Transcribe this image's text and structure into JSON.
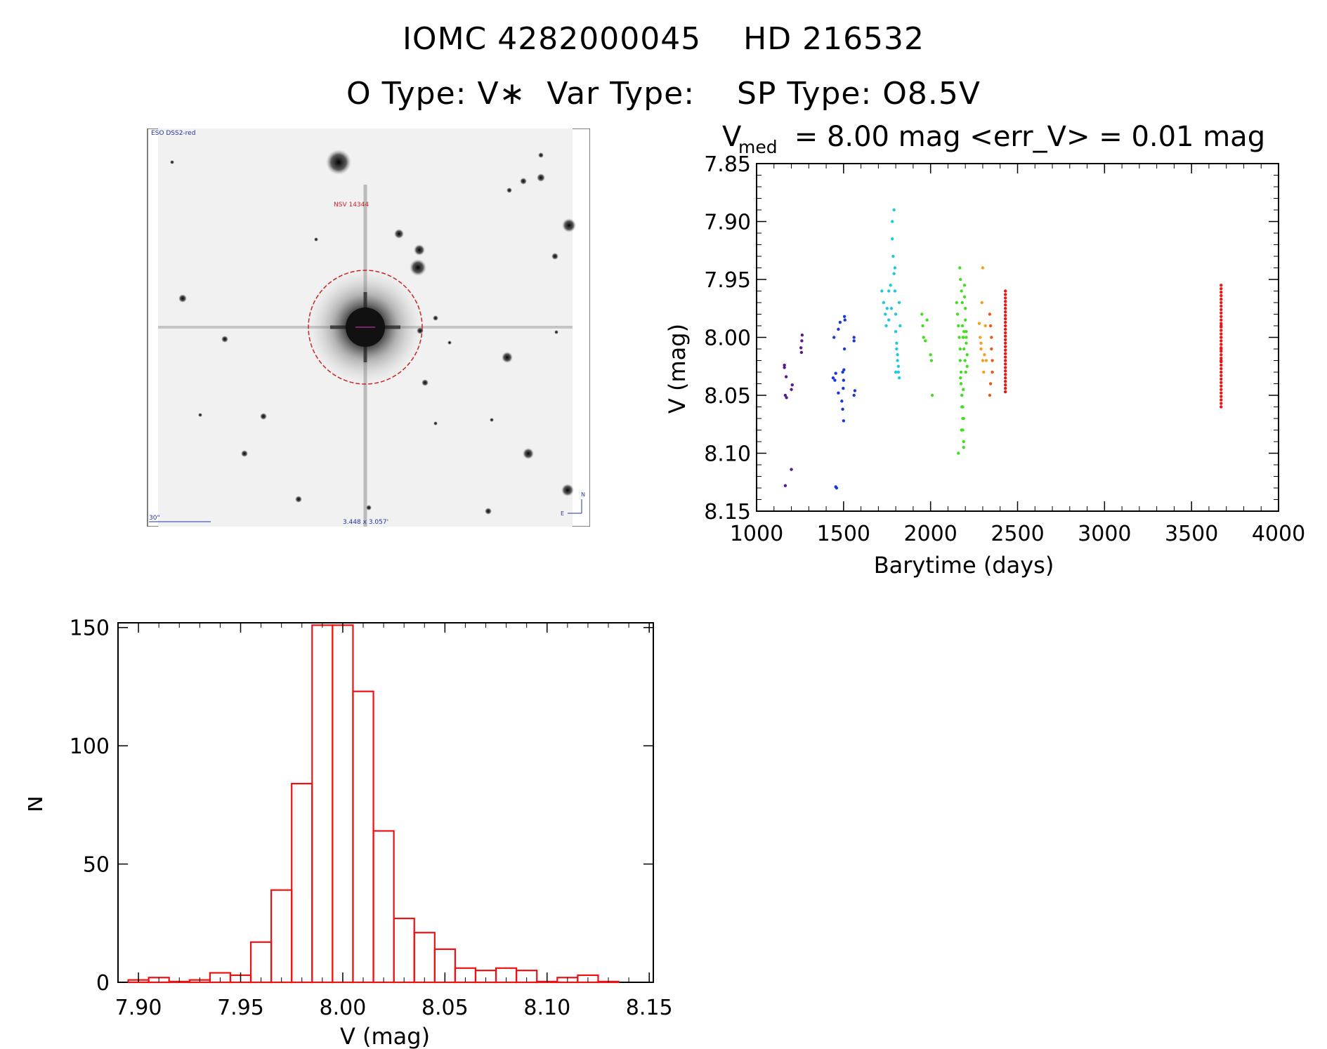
{
  "header": {
    "title_line1": "IOMC 4282000045    HD 216532",
    "title_line2": "O Type: V∗  Var Type:    SP Type: O8.5V"
  },
  "sky_image": {
    "label_top": "ESO DSS2-red",
    "label_star": "NSV 14344",
    "label_scale": "30\"",
    "label_size": "3.448 x 3.057'",
    "label_north": "N",
    "label_east": "E"
  },
  "colors": {
    "histogram": "#ee1111",
    "circle": "#cc2222",
    "series": [
      "#5a1a8c",
      "#1a3ad8",
      "#20c8e0",
      "#44dd22",
      "#f2a020",
      "#e85a18",
      "#e81818"
    ]
  },
  "chart_data": [
    {
      "type": "scatter",
      "title_main": "V",
      "title_sub": "med",
      "title_rest": " = 8.00 mag <err_V> = 0.01 mag",
      "xlabel": "Barytime (days)",
      "ylabel": "V (mag)",
      "xlim": [
        1000,
        4000
      ],
      "ylim": [
        8.15,
        7.85
      ],
      "y_inverted": true,
      "xticks": [
        "1000",
        "1500",
        "2000",
        "2500",
        "3000",
        "3500",
        "4000"
      ],
      "yticks": [
        "7.85",
        "7.90",
        "7.95",
        "8.00",
        "8.05",
        "8.10",
        "8.15"
      ],
      "grid": false,
      "series": [
        {
          "color": "#5a1a8c",
          "x": [
            1160,
            1160,
            1165,
            1165,
            1200,
            1200,
            1205,
            1255,
            1258,
            1260,
            1262,
            1170,
            1172
          ],
          "y": [
            8.024,
            8.026,
            8.05,
            8.128,
            8.114,
            8.045,
            8.041,
            8.009,
            8.013,
            8.003,
            7.998,
            8.034,
            8.052
          ]
        },
        {
          "color": "#1a3ad8",
          "x": [
            1440,
            1445,
            1450,
            1455,
            1460,
            1470,
            1480,
            1490,
            1495,
            1500,
            1500,
            1502,
            1505,
            1505,
            1508,
            1495,
            1498,
            1560,
            1565,
            1560,
            1560,
            1470,
            1455
          ],
          "y": [
            8.035,
            8.0,
            8.037,
            8.129,
            8.13,
            7.993,
            7.987,
            8.055,
            8.062,
            8.072,
            8.037,
            8.028,
            8.01,
            7.982,
            7.985,
            8.03,
            8.044,
            8.05,
            8.046,
            8.003,
            8.0,
            8.048,
            8.031
          ]
        },
        {
          "color": "#20c8e0",
          "x": [
            1720,
            1730,
            1740,
            1745,
            1750,
            1760,
            1770,
            1775,
            1780,
            1780,
            1785,
            1790,
            1795,
            1800,
            1800,
            1805,
            1805,
            1810,
            1810,
            1815,
            1815,
            1820,
            1820,
            1825,
            1790,
            1795,
            1800,
            1760
          ],
          "y": [
            7.96,
            7.97,
            7.98,
            7.99,
            7.975,
            7.96,
            7.955,
            7.975,
            7.9,
            7.915,
            7.93,
            7.945,
            7.96,
            7.98,
            7.995,
            8.005,
            8.01,
            8.015,
            8.02,
            8.025,
            8.03,
            8.035,
            7.97,
            7.99,
            7.89,
            7.94,
            8.03,
            7.985
          ]
        },
        {
          "color": "#44dd22",
          "x": [
            1950,
            1955,
            1960,
            1970,
            1980,
            2000,
            2005,
            2010,
            2150,
            2155,
            2160,
            2165,
            2170,
            2170,
            2175,
            2175,
            2180,
            2180,
            2185,
            2185,
            2190,
            2190,
            2195,
            2195,
            2200,
            2200,
            2205,
            2205,
            2210,
            2210,
            2168,
            2172,
            2178,
            2182,
            2188,
            2192,
            2198,
            2202,
            2175,
            2180,
            2185,
            2190,
            2172,
            2188,
            2160,
            2205,
            2178,
            2192,
            2183,
            2187
          ],
          "y": [
            7.98,
            7.99,
            8.0,
            8.003,
            7.985,
            8.015,
            8.02,
            8.05,
            7.97,
            7.98,
            7.99,
            8.0,
            8.01,
            8.02,
            8.03,
            8.04,
            8.05,
            8.06,
            8.07,
            8.08,
            8.09,
            8.095,
            7.955,
            7.965,
            7.975,
            7.985,
            7.995,
            8.005,
            8.015,
            8.025,
            7.94,
            7.95,
            7.96,
            7.97,
            8.0,
            8.01,
            8.02,
            8.03,
            8.04,
            8.05,
            8.06,
            8.07,
            8.035,
            8.045,
            8.1,
            8.0,
            8.08,
            7.995,
            7.99,
            8.0
          ]
        },
        {
          "color": "#f2a020",
          "x": [
            2280,
            2285,
            2290,
            2295,
            2300,
            2305,
            2310,
            2315,
            2320,
            2300,
            2290
          ],
          "y": [
            7.988,
            8.0,
            8.01,
            7.97,
            8.02,
            8.03,
            8.015,
            7.99,
            8.02,
            7.94,
            8.005
          ]
        },
        {
          "color": "#e85a18",
          "x": [
            2340,
            2345,
            2350,
            2350,
            2355,
            2355,
            2345,
            2340
          ],
          "y": [
            7.98,
            7.99,
            8.0,
            8.01,
            8.02,
            8.03,
            8.04,
            8.05
          ]
        },
        {
          "color": "#e81818",
          "x": [
            2430,
            2430,
            2430,
            2430,
            2430,
            2430,
            2430,
            2430,
            2430,
            2430,
            2430,
            2430,
            2430,
            2430,
            2430,
            2430,
            2430,
            2430,
            2430,
            2430,
            2430,
            2430,
            2430,
            2430,
            2430,
            2430,
            2430,
            2430,
            2430,
            2430
          ],
          "y": [
            7.975,
            7.978,
            7.981,
            7.984,
            7.987,
            7.99,
            7.993,
            7.996,
            7.999,
            8.002,
            8.005,
            8.008,
            8.011,
            8.014,
            8.017,
            8.02,
            8.023,
            8.026,
            8.029,
            8.032,
            8.035,
            8.038,
            8.041,
            8.044,
            8.047,
            7.972,
            7.969,
            7.966,
            7.963,
            7.96
          ]
        },
        {
          "color": "#e81818",
          "x": [
            3670,
            3670,
            3670,
            3670,
            3670,
            3670,
            3670,
            3670,
            3670,
            3670,
            3670,
            3670,
            3670,
            3670,
            3670,
            3670,
            3670,
            3670,
            3670,
            3670,
            3670,
            3670,
            3670,
            3670,
            3670,
            3670,
            3670,
            3670,
            3670,
            3670,
            3670,
            3670,
            3670,
            3670,
            3670,
            3670,
            3670,
            3670,
            3670,
            3670
          ],
          "y": [
            7.955,
            7.958,
            7.961,
            7.964,
            7.967,
            7.97,
            7.973,
            7.976,
            7.979,
            7.982,
            7.985,
            7.988,
            7.991,
            7.994,
            7.997,
            8.0,
            8.003,
            8.006,
            8.009,
            8.012,
            8.015,
            8.018,
            8.021,
            8.024,
            8.027,
            8.03,
            8.033,
            8.036,
            8.039,
            8.042,
            8.045,
            8.048,
            8.051,
            8.054,
            8.057,
            8.06,
            7.99,
            8.0,
            8.01,
            8.02
          ]
        }
      ]
    },
    {
      "type": "bar",
      "subtype": "histogram",
      "xlabel": "V (mag)",
      "ylabel": "N",
      "xlim": [
        7.89,
        8.152
      ],
      "ylim": [
        0,
        152
      ],
      "xticks": [
        "7.90",
        "7.95",
        "8.00",
        "8.05",
        "8.10",
        "8.15"
      ],
      "yticks": [
        "0",
        "50",
        "100",
        "150"
      ],
      "bin_width": 0.01,
      "bin_starts": [
        7.895,
        7.905,
        7.915,
        7.925,
        7.935,
        7.945,
        7.955,
        7.965,
        7.975,
        7.985,
        7.995,
        8.005,
        8.015,
        8.025,
        8.035,
        8.045,
        8.055,
        8.065,
        8.075,
        8.085,
        8.095,
        8.105,
        8.115,
        8.125
      ],
      "counts": [
        1,
        2,
        0,
        1,
        4,
        3,
        17,
        39,
        84,
        151,
        151,
        123,
        64,
        27,
        21,
        14,
        6,
        5,
        6,
        5,
        0,
        2,
        3,
        0
      ],
      "grid": false
    }
  ]
}
